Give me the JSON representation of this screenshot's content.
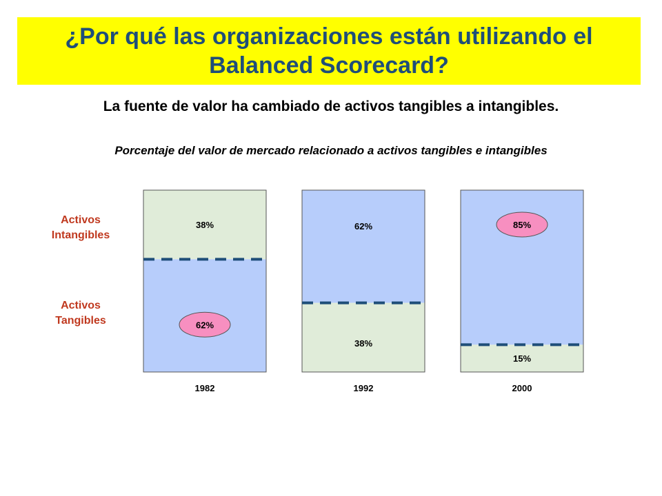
{
  "title": {
    "line1": "¿Por qué las organizaciones están utilizando el",
    "line2": "Balanced Scorecard?"
  },
  "subtitle": "La fuente de valor ha cambiado de activos tangibles a intangibles.",
  "chart_data": {
    "type": "bar",
    "stacked": true,
    "title": "Porcentaje del valor de mercado relacionado a activos tangibles e intangibles",
    "categories": [
      "1982",
      "1992",
      "2000"
    ],
    "ylim": [
      0,
      100
    ],
    "series": [
      {
        "name": "Activos Tangibles",
        "values": [
          62,
          38,
          15
        ],
        "labels": [
          "62%",
          "38%",
          "15%"
        ]
      },
      {
        "name": "Activos Intangibles",
        "values": [
          38,
          62,
          85
        ],
        "labels": [
          "38%",
          "62%",
          "85%"
        ]
      }
    ],
    "highlighted": [
      {
        "category": "1982",
        "series": "Activos Tangibles"
      },
      {
        "category": "2000",
        "series": "Activos Intangibles"
      }
    ],
    "legend": {
      "intangibles": {
        "line1": "Activos",
        "line2": "Intangibles"
      },
      "tangibles": {
        "line1": "Activos",
        "line2": "Tangibles"
      }
    },
    "colors": {
      "majority": "#b7cdfb",
      "minority": "#e0ecd9",
      "divider": "#1f4e79",
      "highlight": "#f78fc0",
      "label_color": "#c0391f"
    }
  }
}
